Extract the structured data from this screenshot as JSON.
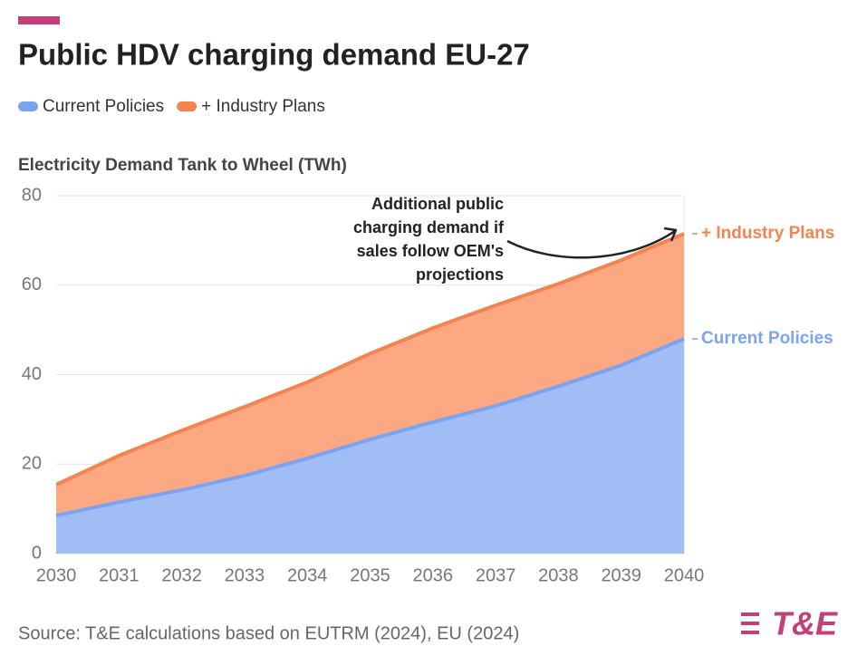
{
  "chart_data": {
    "type": "stacked_area",
    "title": "Public HDV charging demand EU-27",
    "y_axis_label": "Electricity Demand Tank to Wheel (TWh)",
    "categories": [
      "2030",
      "2031",
      "2032",
      "2033",
      "2034",
      "2035",
      "2036",
      "2037",
      "2038",
      "2039",
      "2040"
    ],
    "series": [
      {
        "name": "Current Policies",
        "color": "#7ba3f0",
        "fill": "#a0bdf5",
        "values": [
          8.5,
          11.5,
          14.2,
          17.4,
          21.3,
          25.5,
          29.4,
          33.0,
          37.4,
          42.1,
          48.0
        ]
      },
      {
        "name": "+ Industry Plans",
        "color": "#f4834f",
        "fill": "#fca882",
        "values": [
          6.9,
          10.4,
          13.3,
          15.4,
          17.0,
          19.2,
          21.0,
          22.5,
          22.9,
          23.5,
          23.5
        ]
      }
    ],
    "ylim": [
      0,
      80
    ],
    "yticks": [
      0,
      20,
      40,
      60,
      80
    ],
    "grid": true,
    "legend": "top-left",
    "annotation": [
      "Additional public",
      "charging demand if",
      "sales follow OEM's",
      "projections"
    ],
    "source": "Source: T&E calculations based on EUTRM (2024), EU (2024)",
    "logo": "T&E"
  }
}
